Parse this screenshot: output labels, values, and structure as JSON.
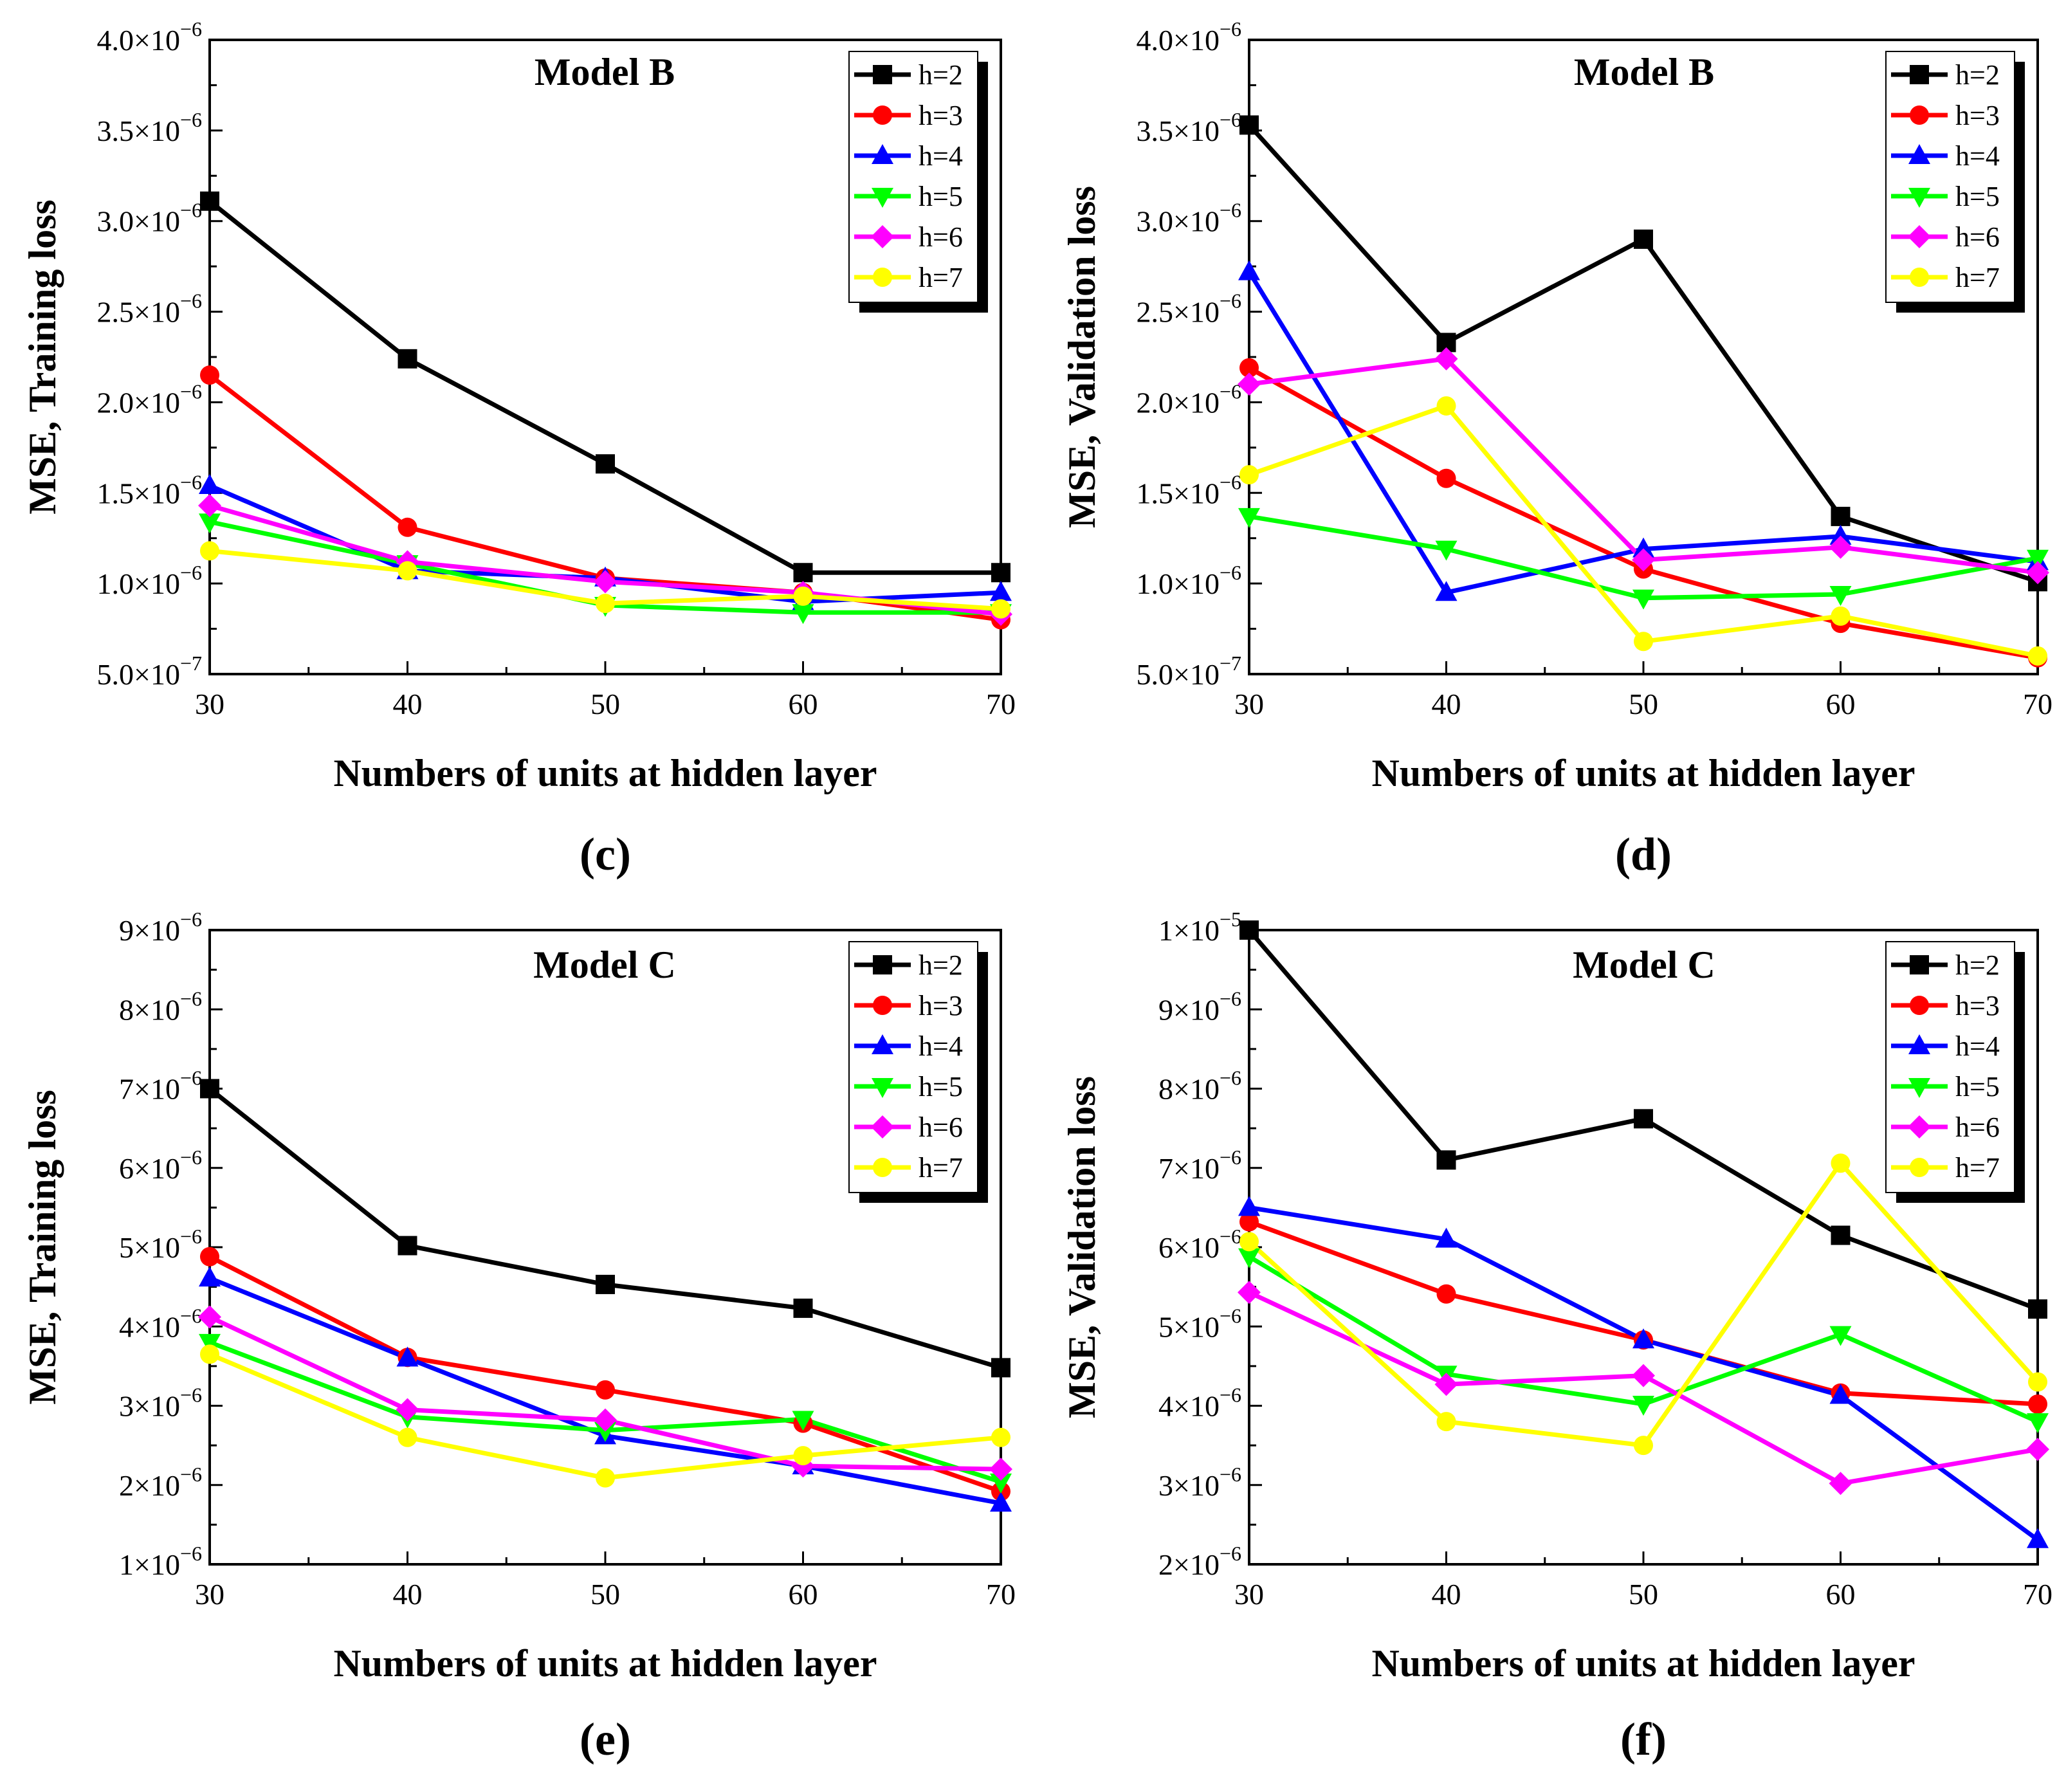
{
  "figure": {
    "series_colors": {
      "h=2": "#000000",
      "h=3": "#ff0000",
      "h=4": "#0000ff",
      "h=5": "#00ff00",
      "h=6": "#ff00ff",
      "h=7": "#ffff00"
    },
    "series_markers": {
      "h=2": "square",
      "h=3": "circle",
      "h=4": "triangle-up",
      "h=5": "triangle-down",
      "h=6": "diamond",
      "h=7": "circle"
    }
  },
  "chart_data": [
    {
      "panel": "(c)",
      "type": "line",
      "title": "Model B",
      "xlabel": "Numbers of units at hidden layer",
      "ylabel": "MSE, Training loss",
      "x": [
        30,
        40,
        50,
        60,
        70
      ],
      "xticks": [
        "30",
        "40",
        "50",
        "60",
        "70"
      ],
      "xlim": [
        30,
        70
      ],
      "ylim": [
        5e-07,
        4e-06
      ],
      "yticks": [
        {
          "value": 5e-07,
          "mant": "5.0",
          "exp": "-7"
        },
        {
          "value": 1e-06,
          "mant": "1.0",
          "exp": "-6"
        },
        {
          "value": 1.5e-06,
          "mant": "1.5",
          "exp": "-6"
        },
        {
          "value": 2e-06,
          "mant": "2.0",
          "exp": "-6"
        },
        {
          "value": 2.5e-06,
          "mant": "2.5",
          "exp": "-6"
        },
        {
          "value": 3e-06,
          "mant": "3.0",
          "exp": "-6"
        },
        {
          "value": 3.5e-06,
          "mant": "3.5",
          "exp": "-6"
        },
        {
          "value": 4e-06,
          "mant": "4.0",
          "exp": "-6"
        }
      ],
      "legend": [
        "h=2",
        "h=3",
        "h=4",
        "h=5",
        "h=6",
        "h=7"
      ],
      "legend_position": "top-right",
      "series": [
        {
          "name": "h=2",
          "values": [
            3.11e-06,
            2.24e-06,
            1.66e-06,
            1.06e-06,
            1.06e-06
          ]
        },
        {
          "name": "h=3",
          "values": [
            2.15e-06,
            1.31e-06,
            1.03e-06,
            9.5e-07,
            8e-07
          ]
        },
        {
          "name": "h=4",
          "values": [
            1.54e-06,
            1.07e-06,
            1.03e-06,
            9e-07,
            9.5e-07
          ]
        },
        {
          "name": "h=5",
          "values": [
            1.34e-06,
            1.11e-06,
            8.8e-07,
            8.4e-07,
            8.4e-07
          ]
        },
        {
          "name": "h=6",
          "values": [
            1.43e-06,
            1.12e-06,
            1.01e-06,
            9.5e-07,
            8.3e-07
          ]
        },
        {
          "name": "h=7",
          "values": [
            1.18e-06,
            1.07e-06,
            8.9e-07,
            9.3e-07,
            8.6e-07
          ]
        }
      ]
    },
    {
      "panel": "(d)",
      "type": "line",
      "title": "Model B",
      "xlabel": "Numbers of units at hidden layer",
      "ylabel": "MSE, Validation loss",
      "x": [
        30,
        40,
        50,
        60,
        70
      ],
      "xticks": [
        "30",
        "40",
        "50",
        "60",
        "70"
      ],
      "xlim": [
        30,
        70
      ],
      "ylim": [
        5e-07,
        4e-06
      ],
      "yticks": [
        {
          "value": 5e-07,
          "mant": "5.0",
          "exp": "-7"
        },
        {
          "value": 1e-06,
          "mant": "1.0",
          "exp": "-6"
        },
        {
          "value": 1.5e-06,
          "mant": "1.5",
          "exp": "-6"
        },
        {
          "value": 2e-06,
          "mant": "2.0",
          "exp": "-6"
        },
        {
          "value": 2.5e-06,
          "mant": "2.5",
          "exp": "-6"
        },
        {
          "value": 3e-06,
          "mant": "3.0",
          "exp": "-6"
        },
        {
          "value": 3.5e-06,
          "mant": "3.5",
          "exp": "-6"
        },
        {
          "value": 4e-06,
          "mant": "4.0",
          "exp": "-6"
        }
      ],
      "legend": [
        "h=2",
        "h=3",
        "h=4",
        "h=5",
        "h=6",
        "h=7"
      ],
      "legend_position": "top-right",
      "series": [
        {
          "name": "h=2",
          "values": [
            3.53e-06,
            2.33e-06,
            2.9e-06,
            1.37e-06,
            1.01e-06
          ]
        },
        {
          "name": "h=3",
          "values": [
            2.19e-06,
            1.58e-06,
            1.08e-06,
            7.8e-07,
            5.9e-07
          ]
        },
        {
          "name": "h=4",
          "values": [
            2.72e-06,
            9.5e-07,
            1.19e-06,
            1.26e-06,
            1.12e-06
          ]
        },
        {
          "name": "h=5",
          "values": [
            1.37e-06,
            1.19e-06,
            9.2e-07,
            9.4e-07,
            1.14e-06
          ]
        },
        {
          "name": "h=6",
          "values": [
            2.1e-06,
            2.24e-06,
            1.13e-06,
            1.2e-06,
            1.06e-06
          ]
        },
        {
          "name": "h=7",
          "values": [
            1.6e-06,
            1.98e-06,
            6.8e-07,
            8.2e-07,
            6e-07
          ]
        }
      ]
    },
    {
      "panel": "(e)",
      "type": "line",
      "title": "Model C",
      "xlabel": "Numbers of units at hidden layer",
      "ylabel": "MSE, Training loss",
      "x": [
        30,
        40,
        50,
        60,
        70
      ],
      "xticks": [
        "30",
        "40",
        "50",
        "60",
        "70"
      ],
      "xlim": [
        30,
        70
      ],
      "ylim": [
        1e-06,
        9e-06
      ],
      "yticks": [
        {
          "value": 1e-06,
          "mant": "1",
          "exp": "-6"
        },
        {
          "value": 2e-06,
          "mant": "2",
          "exp": "-6"
        },
        {
          "value": 3e-06,
          "mant": "3",
          "exp": "-6"
        },
        {
          "value": 4e-06,
          "mant": "4",
          "exp": "-6"
        },
        {
          "value": 5e-06,
          "mant": "5",
          "exp": "-6"
        },
        {
          "value": 6e-06,
          "mant": "6",
          "exp": "-6"
        },
        {
          "value": 7e-06,
          "mant": "7",
          "exp": "-6"
        },
        {
          "value": 8e-06,
          "mant": "8",
          "exp": "-6"
        },
        {
          "value": 9e-06,
          "mant": "9",
          "exp": "-6"
        }
      ],
      "legend": [
        "h=2",
        "h=3",
        "h=4",
        "h=5",
        "h=6",
        "h=7"
      ],
      "legend_position": "top-right",
      "series": [
        {
          "name": "h=2",
          "values": [
            7e-06,
            5.02e-06,
            4.53e-06,
            4.23e-06,
            3.48e-06
          ]
        },
        {
          "name": "h=3",
          "values": [
            4.88e-06,
            3.61e-06,
            3.2e-06,
            2.78e-06,
            1.92e-06
          ]
        },
        {
          "name": "h=4",
          "values": [
            4.61e-06,
            3.6e-06,
            2.62e-06,
            2.24e-06,
            1.77e-06
          ]
        },
        {
          "name": "h=5",
          "values": [
            3.8e-06,
            2.86e-06,
            2.69e-06,
            2.83e-06,
            2.04e-06
          ]
        },
        {
          "name": "h=6",
          "values": [
            4.12e-06,
            2.95e-06,
            2.82e-06,
            2.24e-06,
            2.2e-06
          ]
        },
        {
          "name": "h=7",
          "values": [
            3.65e-06,
            2.6e-06,
            2.09e-06,
            2.37e-06,
            2.6e-06
          ]
        }
      ]
    },
    {
      "panel": "(f)",
      "type": "line",
      "title": "Model C",
      "xlabel": "Numbers of units at hidden layer",
      "ylabel": "MSE, Validation loss",
      "x": [
        30,
        40,
        50,
        60,
        70
      ],
      "xticks": [
        "30",
        "40",
        "50",
        "60",
        "70"
      ],
      "xlim": [
        30,
        70
      ],
      "ylim": [
        2e-06,
        1e-05
      ],
      "yticks": [
        {
          "value": 2e-06,
          "mant": "2",
          "exp": "-6"
        },
        {
          "value": 3e-06,
          "mant": "3",
          "exp": "-6"
        },
        {
          "value": 4e-06,
          "mant": "4",
          "exp": "-6"
        },
        {
          "value": 5e-06,
          "mant": "5",
          "exp": "-6"
        },
        {
          "value": 6e-06,
          "mant": "6",
          "exp": "-6"
        },
        {
          "value": 7e-06,
          "mant": "7",
          "exp": "-6"
        },
        {
          "value": 8e-06,
          "mant": "8",
          "exp": "-6"
        },
        {
          "value": 9e-06,
          "mant": "9",
          "exp": "-6"
        },
        {
          "value": 1e-05,
          "mant": "1",
          "exp": "-5"
        }
      ],
      "legend": [
        "h=2",
        "h=3",
        "h=4",
        "h=5",
        "h=6",
        "h=7"
      ],
      "legend_position": "top-right",
      "series": [
        {
          "name": "h=2",
          "values": [
            1e-05,
            7.1e-06,
            7.62e-06,
            6.15e-06,
            5.22e-06
          ]
        },
        {
          "name": "h=3",
          "values": [
            6.32e-06,
            5.41e-06,
            4.83e-06,
            4.16e-06,
            4.02e-06
          ]
        },
        {
          "name": "h=4",
          "values": [
            6.5e-06,
            6.1e-06,
            4.83e-06,
            4.13e-06,
            2.31e-06
          ]
        },
        {
          "name": "h=5",
          "values": [
            5.88e-06,
            4.4e-06,
            4.02e-06,
            4.9e-06,
            3.8e-06
          ]
        },
        {
          "name": "h=6",
          "values": [
            5.43e-06,
            4.27e-06,
            4.38e-06,
            3.02e-06,
            3.45e-06
          ]
        },
        {
          "name": "h=7",
          "values": [
            6.07e-06,
            3.8e-06,
            3.5e-06,
            7.06e-06,
            4.3e-06
          ]
        }
      ]
    }
  ]
}
